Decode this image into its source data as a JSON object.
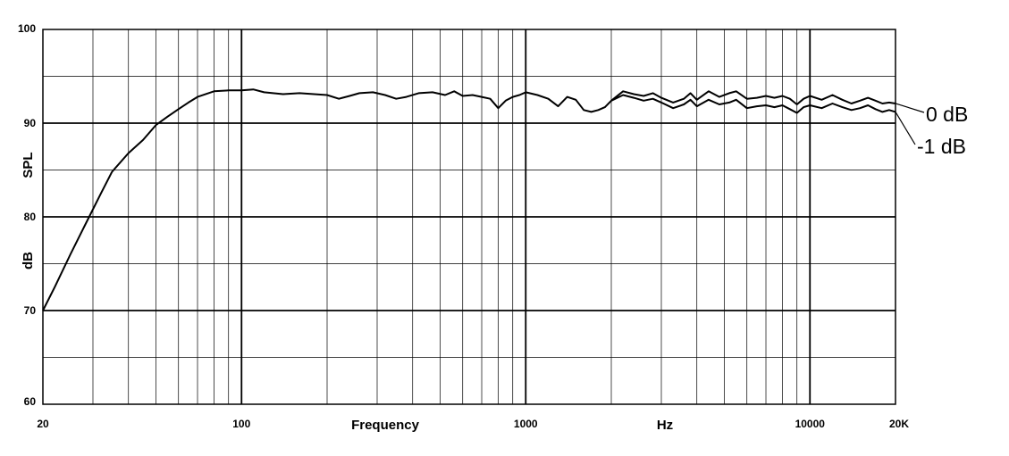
{
  "chart_data": {
    "type": "line",
    "xscale": "log",
    "xlim": [
      20,
      20000
    ],
    "ylim": [
      60,
      100
    ],
    "xlabel": "Frequency",
    "xunit": "Hz",
    "ylabel": "SPL",
    "yunit": "dB",
    "grid": true,
    "x_tick_labels": [
      {
        "value": 20,
        "label": "20"
      },
      {
        "value": 100,
        "label": "100"
      },
      {
        "value": 1000,
        "label": "1000"
      },
      {
        "value": 10000,
        "label": "10000"
      },
      {
        "value": 20000,
        "label": "20K"
      }
    ],
    "y_tick_labels": [
      {
        "value": 60,
        "label": "60"
      },
      {
        "value": 70,
        "label": "70"
      },
      {
        "value": 80,
        "label": "80"
      },
      {
        "value": 90,
        "label": "90"
      },
      {
        "value": 100,
        "label": "100"
      }
    ],
    "shared_until_hz": 2000,
    "series": [
      {
        "name": "0 dB",
        "points": [
          [
            20,
            70.0
          ],
          [
            22,
            72.5
          ],
          [
            25,
            76.0
          ],
          [
            28,
            79.0
          ],
          [
            32,
            82.5
          ],
          [
            35,
            84.8
          ],
          [
            40,
            86.8
          ],
          [
            45,
            88.2
          ],
          [
            50,
            89.8
          ],
          [
            55,
            90.7
          ],
          [
            60,
            91.5
          ],
          [
            65,
            92.2
          ],
          [
            70,
            92.8
          ],
          [
            80,
            93.4
          ],
          [
            90,
            93.5
          ],
          [
            100,
            93.5
          ],
          [
            110,
            93.6
          ],
          [
            120,
            93.3
          ],
          [
            140,
            93.1
          ],
          [
            160,
            93.2
          ],
          [
            180,
            93.1
          ],
          [
            200,
            93.0
          ],
          [
            220,
            92.6
          ],
          [
            240,
            92.9
          ],
          [
            260,
            93.2
          ],
          [
            290,
            93.3
          ],
          [
            320,
            93.0
          ],
          [
            350,
            92.6
          ],
          [
            380,
            92.8
          ],
          [
            420,
            93.2
          ],
          [
            470,
            93.3
          ],
          [
            520,
            93.0
          ],
          [
            560,
            93.4
          ],
          [
            600,
            92.9
          ],
          [
            650,
            93.0
          ],
          [
            700,
            92.8
          ],
          [
            750,
            92.6
          ],
          [
            800,
            91.6
          ],
          [
            850,
            92.4
          ],
          [
            900,
            92.8
          ],
          [
            950,
            93.0
          ],
          [
            1000,
            93.3
          ],
          [
            1100,
            93.0
          ],
          [
            1200,
            92.6
          ],
          [
            1300,
            91.8
          ],
          [
            1400,
            92.8
          ],
          [
            1500,
            92.5
          ],
          [
            1600,
            91.4
          ],
          [
            1700,
            91.2
          ],
          [
            1800,
            91.4
          ],
          [
            1900,
            91.7
          ],
          [
            2000,
            92.4
          ],
          [
            2200,
            93.4
          ],
          [
            2400,
            93.1
          ],
          [
            2600,
            92.9
          ],
          [
            2800,
            93.2
          ],
          [
            3000,
            92.7
          ],
          [
            3300,
            92.2
          ],
          [
            3600,
            92.6
          ],
          [
            3800,
            93.2
          ],
          [
            4000,
            92.5
          ],
          [
            4400,
            93.4
          ],
          [
            4800,
            92.8
          ],
          [
            5200,
            93.2
          ],
          [
            5500,
            93.4
          ],
          [
            6000,
            92.6
          ],
          [
            6500,
            92.7
          ],
          [
            7000,
            92.9
          ],
          [
            7500,
            92.7
          ],
          [
            8000,
            92.9
          ],
          [
            8500,
            92.6
          ],
          [
            9000,
            92.0
          ],
          [
            9500,
            92.6
          ],
          [
            10000,
            92.9
          ],
          [
            11000,
            92.5
          ],
          [
            12000,
            93.0
          ],
          [
            13000,
            92.5
          ],
          [
            14000,
            92.1
          ],
          [
            15000,
            92.4
          ],
          [
            16000,
            92.7
          ],
          [
            17000,
            92.4
          ],
          [
            18000,
            92.1
          ],
          [
            19000,
            92.2
          ],
          [
            20000,
            92.1
          ]
        ]
      },
      {
        "name": "-1 dB",
        "points": [
          [
            2000,
            92.4
          ],
          [
            2200,
            93.0
          ],
          [
            2400,
            92.7
          ],
          [
            2600,
            92.4
          ],
          [
            2800,
            92.6
          ],
          [
            3000,
            92.2
          ],
          [
            3300,
            91.6
          ],
          [
            3600,
            92.0
          ],
          [
            3800,
            92.5
          ],
          [
            4000,
            91.8
          ],
          [
            4400,
            92.5
          ],
          [
            4800,
            92.0
          ],
          [
            5200,
            92.2
          ],
          [
            5500,
            92.5
          ],
          [
            6000,
            91.6
          ],
          [
            6500,
            91.8
          ],
          [
            7000,
            91.9
          ],
          [
            7500,
            91.7
          ],
          [
            8000,
            91.9
          ],
          [
            8500,
            91.5
          ],
          [
            9000,
            91.1
          ],
          [
            9500,
            91.7
          ],
          [
            10000,
            91.9
          ],
          [
            11000,
            91.6
          ],
          [
            12000,
            92.1
          ],
          [
            13000,
            91.7
          ],
          [
            14000,
            91.4
          ],
          [
            15000,
            91.6
          ],
          [
            16000,
            91.9
          ],
          [
            17000,
            91.5
          ],
          [
            18000,
            91.2
          ],
          [
            19000,
            91.4
          ],
          [
            20000,
            91.2
          ]
        ]
      }
    ]
  }
}
